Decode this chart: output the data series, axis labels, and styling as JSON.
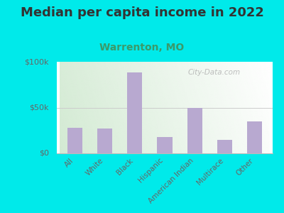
{
  "title": "Median per capita income in 2022",
  "subtitle": "Warrenton, MO",
  "categories": [
    "All",
    "White",
    "Black",
    "Hispanic",
    "American Indian",
    "Multirace",
    "Other"
  ],
  "values": [
    28000,
    27000,
    88000,
    18000,
    50000,
    15000,
    35000
  ],
  "bar_color": "#b8a9d0",
  "background_outer": "#00eaea",
  "background_inner_top_left": "#d8edd8",
  "background_inner_top_right": "#f0f8f0",
  "background_inner_bottom": "#eaf2e4",
  "title_color": "#333333",
  "subtitle_color": "#3a9a6a",
  "tick_label_color": "#666666",
  "ytick_label_color": "#666666",
  "ylim": [
    0,
    100000
  ],
  "ytick_labels": [
    "$0",
    "$50k",
    "$100k"
  ],
  "title_fontsize": 13,
  "subtitle_fontsize": 10,
  "watermark": "City-Data.com"
}
